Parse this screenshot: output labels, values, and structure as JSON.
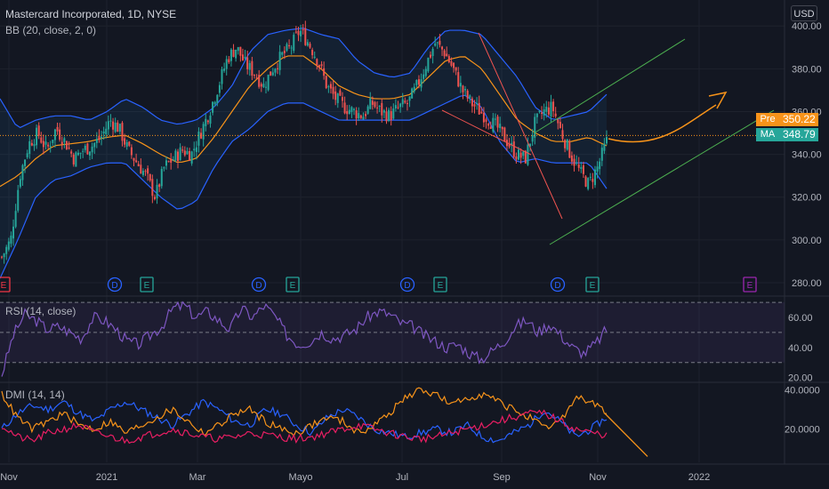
{
  "header": {
    "title": "Mastercard Incorporated, 1D, NYSE",
    "indicator": "BB (20, close, 2, 0)",
    "currency": "USD"
  },
  "price_tags": {
    "pre": {
      "label": "Pre",
      "value": "350.22",
      "color": "#f7931a"
    },
    "ma": {
      "label": "MA",
      "value": "348.79",
      "color": "#26a69a"
    }
  },
  "panes": {
    "rsi": {
      "label": "RSI (14, close)"
    },
    "dmi": {
      "label": "DMI (14, 14)"
    }
  },
  "events": [
    {
      "type": "E",
      "x_label": "Nov",
      "color": "#f23645"
    },
    {
      "type": "D",
      "color": "#2962ff"
    },
    {
      "type": "E",
      "color": "#26a69a"
    },
    {
      "type": "D",
      "color": "#2962ff"
    },
    {
      "type": "E",
      "color": "#26a69a"
    },
    {
      "type": "D",
      "color": "#2962ff"
    },
    {
      "type": "E",
      "color": "#26a69a"
    },
    {
      "type": "D",
      "color": "#2962ff"
    },
    {
      "type": "E",
      "color": "#26a69a"
    },
    {
      "type": "E",
      "color": "#9c27b0"
    }
  ],
  "chart_data": [
    {
      "type": "candlestick",
      "name": "price",
      "y_ticks": [
        "400.00",
        "380.00",
        "360.00",
        "340.00",
        "320.00",
        "300.00",
        "280.00"
      ],
      "ylim": [
        275,
        408
      ],
      "x_ticks": [
        "Nov",
        "2021",
        "Mar",
        "Mayo",
        "Jul",
        "Sep",
        "Nov",
        "2022"
      ],
      "close_path": [
        292,
        300,
        330,
        345,
        350,
        342,
        352,
        346,
        338,
        342,
        344,
        348,
        356,
        352,
        342,
        336,
        330,
        320,
        334,
        338,
        342,
        340,
        350,
        360,
        372,
        385,
        390,
        382,
        378,
        372,
        380,
        386,
        390,
        398,
        392,
        384,
        372,
        366,
        362,
        360,
        358,
        364,
        360,
        358,
        362,
        364,
        372,
        382,
        392,
        388,
        380,
        370,
        364,
        360,
        356,
        352,
        346,
        340,
        338,
        354,
        360,
        362,
        350,
        340,
        332,
        326,
        334,
        346
      ],
      "bb_upper_path": [
        366,
        352,
        356,
        358,
        358,
        356,
        360,
        366,
        362,
        356,
        354,
        356,
        362,
        372,
        388,
        396,
        398,
        399,
        396,
        394,
        384,
        378,
        376,
        378,
        390,
        398,
        398,
        396,
        386,
        376,
        362,
        356,
        358,
        360,
        368
      ],
      "bb_mid_path": [
        325,
        330,
        338,
        344,
        345,
        346,
        348,
        349,
        345,
        340,
        336,
        338,
        348,
        360,
        372,
        380,
        386,
        386,
        380,
        372,
        368,
        366,
        366,
        368,
        376,
        384,
        386,
        380,
        368,
        356,
        350,
        346,
        346,
        348,
        344
      ],
      "bb_lower_path": [
        282,
        300,
        320,
        328,
        330,
        334,
        336,
        336,
        328,
        320,
        314,
        318,
        334,
        346,
        352,
        360,
        364,
        364,
        360,
        356,
        356,
        356,
        356,
        356,
        360,
        364,
        368,
        362,
        346,
        336,
        338,
        336,
        336,
        336,
        324
      ],
      "pre_line": 348.8,
      "forecast_curve": [
        [
          346,
          345
        ],
        [
          350,
          355
        ],
        [
          360,
          368
        ]
      ],
      "channel_down": [
        [
          395,
          395
        ],
        [
          316,
          380
        ]
      ],
      "channel_up_lines": "two parallel green up-sloping lines"
    },
    {
      "type": "line",
      "name": "RSI",
      "ylim": [
        18,
        73
      ],
      "y_ticks": [
        "60.00",
        "40.00",
        "20.00"
      ],
      "bands": [
        70,
        50,
        30
      ],
      "values": [
        22,
        48,
        62,
        58,
        52,
        54,
        50,
        46,
        60,
        58,
        52,
        44,
        42,
        48,
        54,
        66,
        68,
        60,
        64,
        58,
        52,
        66,
        60,
        68,
        60,
        48,
        42,
        44,
        50,
        46,
        48,
        52,
        60,
        64,
        62,
        56,
        54,
        48,
        44,
        40,
        42,
        36,
        32,
        38,
        44,
        54,
        58,
        50,
        56,
        48,
        40,
        36,
        42,
        52
      ]
    },
    {
      "type": "line",
      "name": "DMI",
      "ylim": [
        3,
        43
      ],
      "y_ticks": [
        "40.0000",
        "20.0000"
      ],
      "series": [
        {
          "color": "#2962ff",
          "values": [
            20,
            28,
            32,
            30,
            34,
            28,
            24,
            30,
            34,
            30,
            26,
            22,
            28,
            34,
            30,
            24,
            22,
            30,
            28,
            22,
            18,
            26,
            30,
            26,
            20,
            18,
            16,
            18,
            20,
            18,
            22,
            16,
            14,
            18,
            22,
            30,
            24,
            16,
            20,
            26
          ]
        },
        {
          "color": "#f7931a",
          "values": [
            38,
            26,
            20,
            24,
            28,
            22,
            20,
            24,
            18,
            22,
            26,
            30,
            24,
            18,
            22,
            28,
            30,
            24,
            20,
            18,
            22,
            26,
            24,
            18,
            22,
            28,
            36,
            40,
            38,
            32,
            36,
            38,
            34,
            30,
            26,
            20,
            24,
            36,
            34,
            28
          ]
        },
        {
          "color": "#e91e63",
          "values": [
            22,
            16,
            14,
            18,
            20,
            22,
            18,
            16,
            14,
            16,
            18,
            20,
            18,
            16,
            15,
            16,
            18,
            17,
            16,
            15,
            16,
            18,
            20,
            22,
            20,
            18,
            16,
            15,
            16,
            18,
            20,
            22,
            24,
            26,
            28,
            28,
            24,
            20,
            18,
            17
          ]
        }
      ],
      "projection": "orange line trending down to ~6"
    }
  ]
}
